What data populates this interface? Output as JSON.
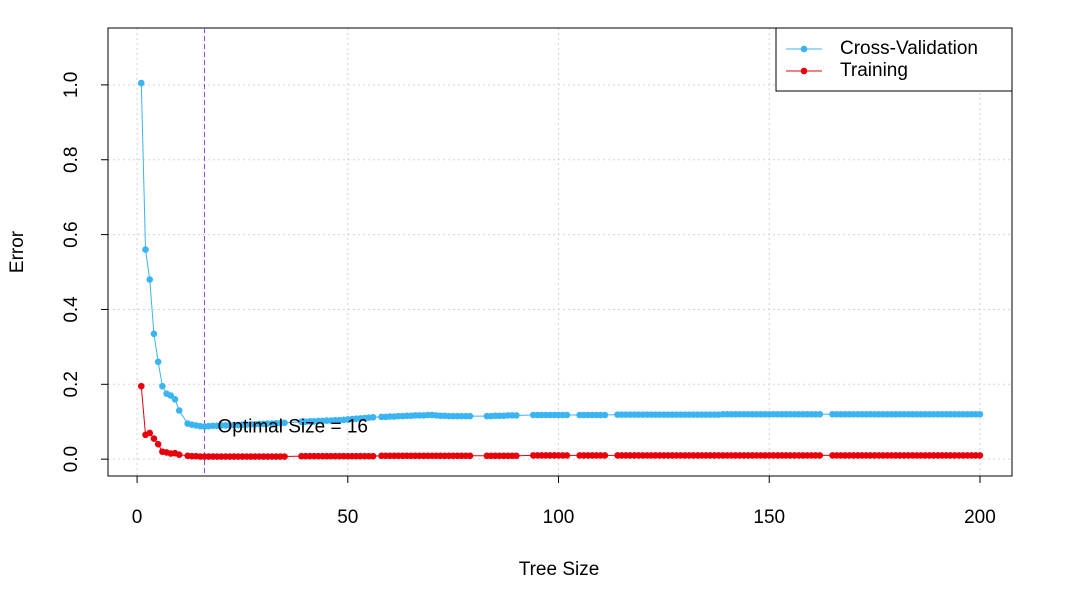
{
  "chart_data": {
    "type": "line",
    "x_label": "Tree Size",
    "y_label": "Error",
    "annotation": "Optimal Size = 16",
    "optimal_size": 16,
    "x": [
      1,
      2,
      3,
      4,
      5,
      6,
      7,
      8,
      9,
      10,
      12,
      13,
      14,
      15,
      16,
      17,
      18,
      19,
      20,
      21,
      22,
      23,
      24,
      25,
      26,
      27,
      28,
      29,
      30,
      31,
      32,
      33,
      34,
      35,
      39,
      40,
      41,
      42,
      43,
      44,
      45,
      46,
      47,
      48,
      49,
      50,
      51,
      52,
      53,
      54,
      55,
      56,
      58,
      59,
      60,
      61,
      62,
      63,
      64,
      65,
      66,
      67,
      68,
      69,
      70,
      71,
      72,
      73,
      74,
      75,
      76,
      77,
      78,
      79,
      83,
      84,
      85,
      86,
      87,
      88,
      89,
      90,
      94,
      95,
      96,
      97,
      98,
      99,
      100,
      101,
      102,
      105,
      106,
      107,
      108,
      109,
      110,
      111,
      114,
      115,
      116,
      117,
      118,
      119,
      120,
      121,
      122,
      123,
      124,
      125,
      126,
      127,
      128,
      129,
      130,
      131,
      132,
      133,
      134,
      135,
      136,
      137,
      138,
      139,
      140,
      141,
      142,
      143,
      144,
      145,
      146,
      147,
      148,
      149,
      150,
      151,
      152,
      153,
      154,
      155,
      156,
      157,
      158,
      159,
      160,
      161,
      162,
      165,
      166,
      167,
      168,
      169,
      170,
      171,
      172,
      173,
      174,
      175,
      176,
      177,
      178,
      179,
      180,
      181,
      182,
      183,
      184,
      185,
      186,
      187,
      188,
      189,
      190,
      191,
      192,
      193,
      194,
      195,
      196,
      197,
      198,
      199,
      200
    ],
    "series": [
      {
        "name": "Cross-Validation",
        "color": "#3ab4f2",
        "values": [
          1.005,
          0.56,
          0.48,
          0.335,
          0.26,
          0.195,
          0.175,
          0.17,
          0.16,
          0.13,
          0.095,
          0.092,
          0.09,
          0.088,
          0.087,
          0.088,
          0.089,
          0.089,
          0.09,
          0.09,
          0.09,
          0.091,
          0.091,
          0.092,
          0.092,
          0.093,
          0.093,
          0.094,
          0.094,
          0.095,
          0.095,
          0.096,
          0.096,
          0.097,
          0.1,
          0.1,
          0.101,
          0.101,
          0.102,
          0.102,
          0.103,
          0.103,
          0.104,
          0.104,
          0.105,
          0.106,
          0.107,
          0.108,
          0.109,
          0.11,
          0.111,
          0.112,
          0.113,
          0.113,
          0.114,
          0.114,
          0.115,
          0.115,
          0.116,
          0.116,
          0.117,
          0.117,
          0.117,
          0.118,
          0.118,
          0.117,
          0.116,
          0.116,
          0.115,
          0.115,
          0.115,
          0.115,
          0.115,
          0.115,
          0.115,
          0.115,
          0.116,
          0.116,
          0.116,
          0.117,
          0.117,
          0.117,
          0.118,
          0.118,
          0.118,
          0.118,
          0.118,
          0.118,
          0.118,
          0.118,
          0.118,
          0.118,
          0.118,
          0.118,
          0.118,
          0.118,
          0.118,
          0.118,
          0.119,
          0.119,
          0.119,
          0.119,
          0.119,
          0.119,
          0.119,
          0.119,
          0.119,
          0.119,
          0.119,
          0.119,
          0.119,
          0.119,
          0.119,
          0.119,
          0.119,
          0.119,
          0.119,
          0.119,
          0.119,
          0.119,
          0.119,
          0.119,
          0.119,
          0.12,
          0.12,
          0.12,
          0.12,
          0.12,
          0.12,
          0.12,
          0.12,
          0.12,
          0.12,
          0.12,
          0.12,
          0.12,
          0.12,
          0.12,
          0.12,
          0.12,
          0.12,
          0.12,
          0.12,
          0.12,
          0.12,
          0.12,
          0.12,
          0.12,
          0.12,
          0.12,
          0.12,
          0.12,
          0.12,
          0.12,
          0.12,
          0.12,
          0.12,
          0.12,
          0.12,
          0.12,
          0.12,
          0.12,
          0.12,
          0.12,
          0.12,
          0.12,
          0.12,
          0.12,
          0.12,
          0.12,
          0.12,
          0.12,
          0.12,
          0.12,
          0.12,
          0.12,
          0.12,
          0.12,
          0.12,
          0.12,
          0.12,
          0.12,
          0.12
        ]
      },
      {
        "name": "Training",
        "color": "#e8000b",
        "values": [
          0.195,
          0.065,
          0.07,
          0.055,
          0.04,
          0.02,
          0.018,
          0.015,
          0.016,
          0.012,
          0.009,
          0.008,
          0.008,
          0.007,
          0.007,
          0.007,
          0.007,
          0.007,
          0.007,
          0.007,
          0.007,
          0.007,
          0.007,
          0.007,
          0.007,
          0.007,
          0.007,
          0.007,
          0.007,
          0.007,
          0.007,
          0.007,
          0.007,
          0.007,
          0.008,
          0.008,
          0.008,
          0.008,
          0.008,
          0.008,
          0.008,
          0.008,
          0.008,
          0.008,
          0.008,
          0.008,
          0.008,
          0.008,
          0.008,
          0.008,
          0.008,
          0.008,
          0.009,
          0.009,
          0.009,
          0.009,
          0.009,
          0.009,
          0.009,
          0.009,
          0.009,
          0.009,
          0.009,
          0.009,
          0.009,
          0.009,
          0.009,
          0.009,
          0.009,
          0.009,
          0.009,
          0.009,
          0.009,
          0.009,
          0.009,
          0.009,
          0.009,
          0.009,
          0.009,
          0.009,
          0.009,
          0.009,
          0.01,
          0.01,
          0.01,
          0.01,
          0.01,
          0.01,
          0.01,
          0.01,
          0.01,
          0.01,
          0.01,
          0.01,
          0.01,
          0.01,
          0.01,
          0.01,
          0.01,
          0.01,
          0.01,
          0.01,
          0.01,
          0.01,
          0.01,
          0.01,
          0.01,
          0.01,
          0.01,
          0.01,
          0.01,
          0.01,
          0.01,
          0.01,
          0.01,
          0.01,
          0.01,
          0.01,
          0.01,
          0.01,
          0.01,
          0.01,
          0.01,
          0.01,
          0.01,
          0.01,
          0.01,
          0.01,
          0.01,
          0.01,
          0.01,
          0.01,
          0.01,
          0.01,
          0.01,
          0.01,
          0.01,
          0.01,
          0.01,
          0.01,
          0.01,
          0.01,
          0.01,
          0.01,
          0.01,
          0.01,
          0.01,
          0.01,
          0.01,
          0.01,
          0.01,
          0.01,
          0.01,
          0.01,
          0.01,
          0.01,
          0.01,
          0.01,
          0.01,
          0.01,
          0.01,
          0.01,
          0.01,
          0.01,
          0.01,
          0.01,
          0.01,
          0.01,
          0.01,
          0.01,
          0.01,
          0.01,
          0.01,
          0.01,
          0.01,
          0.01,
          0.01,
          0.01,
          0.01,
          0.01,
          0.01,
          0.01,
          0.01
        ]
      }
    ],
    "xlim": [
      -6.9,
      207.6
    ],
    "ylim": [
      -0.045,
      1.152
    ],
    "xticks": [
      0,
      50,
      100,
      150,
      200
    ],
    "yticks": [
      {
        "value": 0,
        "label": "0.0"
      },
      {
        "value": 0.2,
        "label": "0.2"
      },
      {
        "value": 0.4,
        "label": "0.4"
      },
      {
        "value": 0.6,
        "label": "0.6"
      },
      {
        "value": 0.8,
        "label": "0.8"
      },
      {
        "value": 1,
        "label": "1.0"
      }
    ],
    "grid": true,
    "legend": "top-right",
    "vline_color": "#7b4fe0"
  }
}
